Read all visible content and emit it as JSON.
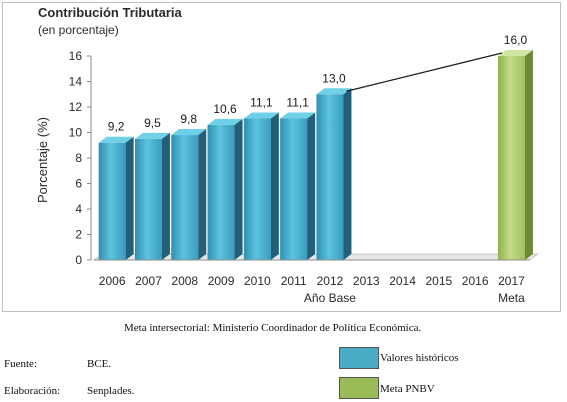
{
  "chart_data": {
    "type": "bar",
    "title": "Contribución Tributaria",
    "subtitle": "(en porcentaje)",
    "ylabel": "Porcentaje (%)",
    "xlabel": "",
    "ylim": [
      0,
      16
    ],
    "yticks": [
      "0",
      "2",
      "4",
      "6",
      "8",
      "10",
      "12",
      "14",
      "16"
    ],
    "categories": [
      "2006",
      "2007",
      "2008",
      "2009",
      "2010",
      "2011",
      "2012",
      "2013",
      "2014",
      "2015",
      "2016",
      "2017"
    ],
    "category_sublabels": {
      "2012": "Año Base",
      "2017": "Meta"
    },
    "series": [
      {
        "name": "Valores históricos",
        "color": "#4bacc6",
        "values": [
          9.2,
          9.5,
          9.8,
          10.6,
          11.1,
          11.1,
          13.0,
          null,
          null,
          null,
          null,
          null
        ],
        "labels": [
          "9,2",
          "9,5",
          "9,8",
          "10,6",
          "11,1",
          "11,1",
          "13,0",
          "",
          "",
          "",
          "",
          ""
        ]
      },
      {
        "name": "Meta PNBV",
        "color": "#9bbb59",
        "values": [
          null,
          null,
          null,
          null,
          null,
          null,
          null,
          null,
          null,
          null,
          null,
          16.0
        ],
        "labels": [
          "",
          "",
          "",
          "",
          "",
          "",
          "",
          "",
          "",
          "",
          "",
          "16,0"
        ]
      }
    ],
    "trend_line": {
      "from": "2012",
      "to": "2017"
    },
    "grid": false,
    "legend": "bottom-right"
  },
  "note": "Meta intersectorial: Ministerio Coordinador de Política Económica.",
  "footer": {
    "source_label": "Fuente:",
    "source_value": "BCE.",
    "prepared_label": "Elaboración:",
    "prepared_value": "Senplades."
  }
}
